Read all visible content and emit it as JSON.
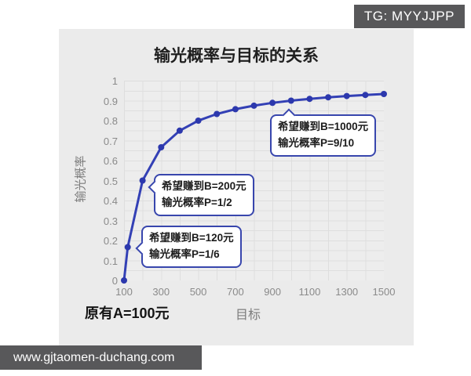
{
  "badge": {
    "text": "TG: MYYJJPP"
  },
  "footer": {
    "url": "www.gjtaomen-duchang.com"
  },
  "chart_data": {
    "type": "line",
    "title": "输光概率与目标的关系",
    "xlabel": "目标",
    "ylabel": "输光概率",
    "note": "原有A=100元",
    "x": [
      100,
      120,
      200,
      300,
      400,
      500,
      600,
      700,
      800,
      900,
      1000,
      1100,
      1200,
      1300,
      1400,
      1500
    ],
    "y": [
      0,
      0.1667,
      0.5,
      0.6667,
      0.75,
      0.8,
      0.8333,
      0.8571,
      0.875,
      0.8889,
      0.9,
      0.9091,
      0.9167,
      0.9231,
      0.9286,
      0.9333
    ],
    "xlim": [
      100,
      1500
    ],
    "ylim": [
      0,
      1
    ],
    "x_tick_labels": [
      "100",
      "300",
      "500",
      "700",
      "900",
      "1100",
      "1300",
      "1500"
    ],
    "x_tick_values": [
      100,
      300,
      500,
      700,
      900,
      1100,
      1300,
      1500
    ],
    "y_tick_labels": [
      "0",
      "0.1",
      "0.2",
      "0.3",
      "0.4",
      "0.5",
      "0.6",
      "0.7",
      "0.8",
      "0.9",
      "1"
    ],
    "y_tick_values": [
      0,
      0.1,
      0.2,
      0.3,
      0.4,
      0.5,
      0.6,
      0.7,
      0.8,
      0.9,
      1
    ],
    "grid": "on",
    "line_color": "#3340b5",
    "marker_color": "#2c38ad",
    "annotations": [
      {
        "line1": "希望赚到B=200元",
        "line2": "输光概率P=1/2",
        "anchor_x": 200,
        "anchor_y": 0.5
      },
      {
        "line1": "希望赚到B=120元",
        "line2": "输光概率P=1/6",
        "anchor_x": 120,
        "anchor_y": 0.1667
      },
      {
        "line1": "希望赚到B=1000元",
        "line2": "输光概率P=9/10",
        "anchor_x": 1000,
        "anchor_y": 0.9
      }
    ]
  }
}
